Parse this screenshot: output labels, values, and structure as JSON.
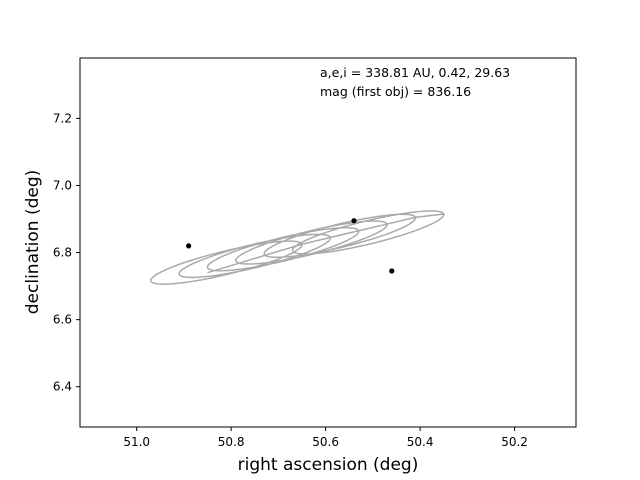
{
  "chart_data": {
    "type": "line",
    "title": "",
    "xlabel": "right ascension (deg)",
    "ylabel": "declination (deg)",
    "xlim": [
      51.12,
      50.07
    ],
    "ylim": [
      6.28,
      7.38
    ],
    "x_inverted": true,
    "grid": false,
    "xticks": [
      51.0,
      50.8,
      50.6,
      50.4,
      50.2
    ],
    "xtick_labels": [
      "51.0",
      "50.8",
      "50.6",
      "50.4",
      "50.2"
    ],
    "yticks": [
      6.4,
      6.6,
      6.8,
      7.0,
      7.2
    ],
    "ytick_labels": [
      "6.4",
      "6.6",
      "6.8",
      "7.0",
      "7.2"
    ],
    "annotations": [
      "a,e,i = 338.81 AU, 0.42, 29.63",
      "mag (first obj) = 836.16"
    ],
    "series": [
      {
        "color": "#aaaaaa",
        "kind": "parallax-loops",
        "loops": [
          {
            "center_ra": 50.81,
            "center_dec": 6.77
          },
          {
            "center_ra": 50.75,
            "center_dec": 6.79
          },
          {
            "center_ra": 50.69,
            "center_dec": 6.81
          },
          {
            "center_ra": 50.63,
            "center_dec": 6.83
          },
          {
            "center_ra": 50.57,
            "center_dec": 6.85
          },
          {
            "center_ra": 50.51,
            "center_dec": 6.86
          }
        ],
        "start": [
          50.85,
          6.74
        ],
        "semi_major_ra": 0.16,
        "semi_major_dec": -0.055,
        "semi_minor_ra": 0.008,
        "semi_minor_dec": 0.033
      },
      {
        "kind": "points",
        "color": "#000000",
        "x": [
          50.89,
          50.54,
          50.46
        ],
        "y": [
          6.82,
          6.895,
          6.745
        ]
      }
    ]
  }
}
